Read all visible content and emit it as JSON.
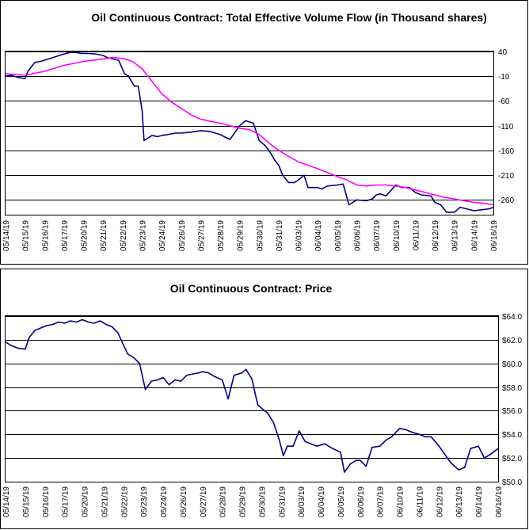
{
  "chart_data": [
    {
      "type": "line",
      "title": "Oil Continuous Contract: Total Effective Volume Flow (in Thousand shares)",
      "ylim": [
        -290,
        40
      ],
      "yticks": [
        40,
        -10,
        -60,
        -110,
        -160,
        -210,
        -260
      ],
      "y_axis_side": "right",
      "grid": true,
      "categories": [
        "05/14/19",
        "05/15/19",
        "05/16/19",
        "05/17/19",
        "05/20/19",
        "05/21/19",
        "05/22/19",
        "05/23/19",
        "05/24/19",
        "05/26/19",
        "05/27/19",
        "05/28/19",
        "05/29/19",
        "05/30/19",
        "05/31/19",
        "06/03/19",
        "06/04/19",
        "06/05/19",
        "06/06/19",
        "06/07/19",
        "06/10/19",
        "06/11/19",
        "06/12/19",
        "06/13/19",
        "06/14/19",
        "06/16/19"
      ],
      "series": [
        {
          "color": "#000080",
          "x": [
            0,
            0.3,
            0.6,
            1.0,
            1.15,
            1.5,
            1.8,
            2.3,
            2.6,
            3.0,
            3.3,
            3.6,
            3.9,
            4.2,
            4.6,
            5.0,
            5.2,
            5.6,
            5.8,
            6.1,
            6.3,
            6.6,
            6.8,
            7.0,
            7.1,
            7.5,
            7.8,
            8.0,
            8.3,
            8.7,
            9.0,
            9.5,
            10.0,
            10.5,
            11.0,
            11.5,
            12.0,
            12.3,
            12.7,
            13.0,
            13.3,
            13.5,
            13.8,
            14.0,
            14.2,
            14.5,
            14.8,
            15.0,
            15.3,
            15.5,
            16.0,
            16.2,
            16.5,
            17.0,
            17.3,
            17.6,
            18.0,
            18.5,
            18.8,
            19.0,
            19.2,
            19.5,
            20.0,
            20.3,
            20.7,
            21.0,
            21.3,
            21.8,
            22.0,
            22.3,
            22.6,
            23.0,
            23.3,
            23.6,
            24.0,
            24.4,
            24.8,
            25.0
          ],
          "values": [
            -10,
            -8,
            -12,
            -15,
            0,
            18,
            20,
            26,
            30,
            35,
            38,
            38,
            36,
            36,
            35,
            32,
            28,
            24,
            22,
            -5,
            -10,
            -30,
            -30,
            -80,
            -140,
            -130,
            -132,
            -130,
            -128,
            -125,
            -125,
            -123,
            -120,
            -122,
            -128,
            -138,
            -110,
            -100,
            -105,
            -140,
            -150,
            -160,
            -180,
            -190,
            -210,
            -225,
            -225,
            -220,
            -210,
            -235,
            -235,
            -238,
            -232,
            -230,
            -228,
            -270,
            -260,
            -262,
            -258,
            -250,
            -248,
            -252,
            -230,
            -235,
            -235,
            -245,
            -250,
            -252,
            -265,
            -270,
            -285,
            -285,
            -275,
            -278,
            -282,
            -280,
            -278,
            -275
          ]
        },
        {
          "color": "#ff00ff",
          "x": [
            0,
            1.0,
            2.0,
            3.0,
            4.0,
            5.0,
            5.5,
            6.0,
            6.5,
            7.0,
            7.5,
            8.0,
            8.5,
            9.0,
            9.5,
            10.0,
            11.0,
            12.0,
            12.5,
            13.0,
            13.5,
            14.0,
            14.5,
            15.0,
            15.5,
            16.0,
            16.5,
            17.0,
            17.5,
            18.0,
            18.5,
            19.0,
            19.5,
            20.0,
            20.5,
            21.0,
            21.5,
            22.0,
            22.5,
            23.0,
            23.5,
            24.0,
            24.5,
            25.0
          ],
          "values": [
            -5,
            -8,
            0,
            12,
            20,
            25,
            28,
            26,
            20,
            5,
            -20,
            -45,
            -62,
            -75,
            -88,
            -97,
            -105,
            -115,
            -118,
            -128,
            -145,
            -160,
            -172,
            -183,
            -190,
            -197,
            -205,
            -213,
            -220,
            -230,
            -232,
            -230,
            -230,
            -232,
            -235,
            -240,
            -245,
            -250,
            -255,
            -258,
            -262,
            -265,
            -267,
            -270
          ]
        }
      ]
    },
    {
      "type": "line",
      "title": "Oil Continuous Contract: Price",
      "ylim": [
        50.0,
        64.0
      ],
      "yticks": [
        "$64.0",
        "$62.0",
        "$60.0",
        "$58.0",
        "$56.0",
        "$54.0",
        "$52.0",
        "$50.0"
      ],
      "y_axis_side": "right",
      "grid": true,
      "categories": [
        "05/14/19",
        "05/15/19",
        "05/16/19",
        "05/17/19",
        "05/20/19",
        "05/21/19",
        "05/22/19",
        "05/23/19",
        "05/24/19",
        "05/26/19",
        "05/27/19",
        "05/28/19",
        "05/29/19",
        "05/30/19",
        "05/31/19",
        "06/03/19",
        "06/04/19",
        "06/05/19",
        "06/06/19",
        "06/07/19",
        "06/10/19",
        "06/11/19",
        "06/12/19",
        "06/13/19",
        "06/14/19",
        "06/16/19"
      ],
      "series": [
        {
          "color": "#000080",
          "x": [
            0,
            0.3,
            0.6,
            1.0,
            1.2,
            1.5,
            1.8,
            2.1,
            2.4,
            2.7,
            3.0,
            3.3,
            3.6,
            3.9,
            4.2,
            4.5,
            4.8,
            5.1,
            5.4,
            5.7,
            6.0,
            6.2,
            6.5,
            6.8,
            7.0,
            7.1,
            7.4,
            7.7,
            8.0,
            8.3,
            8.6,
            8.9,
            9.2,
            9.5,
            9.8,
            10.0,
            10.3,
            10.6,
            11.0,
            11.3,
            11.6,
            12.0,
            12.2,
            12.5,
            12.8,
            13.0,
            13.3,
            13.6,
            13.9,
            14.1,
            14.3,
            14.6,
            14.9,
            15.2,
            15.5,
            15.8,
            16.2,
            16.6,
            17.0,
            17.2,
            17.5,
            17.8,
            18.0,
            18.3,
            18.6,
            19.0,
            19.3,
            19.6,
            20.0,
            20.3,
            20.6,
            21.0,
            21.3,
            21.6,
            22.0,
            22.3,
            22.6,
            23.0,
            23.3,
            23.6,
            24.0,
            24.3,
            24.6,
            25.0
          ],
          "values": [
            61.8,
            61.5,
            61.3,
            61.2,
            62.2,
            62.8,
            63.0,
            63.2,
            63.3,
            63.5,
            63.4,
            63.6,
            63.5,
            63.7,
            63.5,
            63.4,
            63.6,
            63.3,
            63.1,
            62.6,
            61.5,
            60.8,
            60.5,
            60.0,
            58.5,
            57.8,
            58.5,
            58.6,
            58.8,
            58.2,
            58.6,
            58.5,
            59.0,
            59.1,
            59.2,
            59.3,
            59.2,
            58.9,
            58.6,
            57.0,
            59.0,
            59.2,
            59.5,
            58.7,
            56.5,
            56.2,
            55.8,
            55.0,
            53.5,
            52.2,
            53.0,
            53.0,
            54.3,
            53.4,
            53.2,
            53.0,
            53.2,
            52.8,
            52.5,
            50.8,
            51.5,
            51.8,
            51.8,
            51.3,
            52.9,
            53.0,
            53.5,
            53.8,
            54.5,
            54.4,
            54.2,
            54.0,
            53.8,
            53.8,
            53.0,
            52.3,
            51.6,
            51.0,
            51.2,
            52.8,
            53.0,
            52.0,
            52.3,
            52.8
          ]
        }
      ]
    }
  ]
}
